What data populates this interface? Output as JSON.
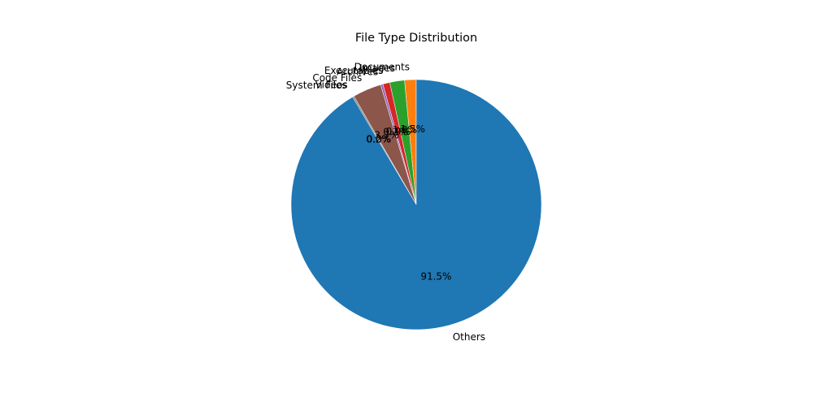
{
  "chart_data": {
    "type": "pie",
    "title": "File Type Distribution",
    "start_angle_deg": 90,
    "counterclock": true,
    "categories": [
      "Documents",
      "Images",
      "Executables",
      "Archives",
      "Code Files",
      "Videos",
      "System Files",
      "Others"
    ],
    "values": [
      1.5,
      1.9,
      0.9,
      0.3,
      3.7,
      0.0,
      0.2,
      91.5
    ],
    "percent_labels": [
      "1.5%",
      "1.9%",
      "0.9%",
      "0.3%",
      "3.7%",
      "0.0%",
      "0.2%",
      "91.5%"
    ],
    "colors": [
      "#ff7f0e",
      "#2ca02c",
      "#d62728",
      "#9467bd",
      "#8c564b",
      "#e377c2",
      "#7f7f7f",
      "#1f77b4"
    ],
    "edge_color": "#ffffff",
    "legend": "none",
    "grid": false
  }
}
